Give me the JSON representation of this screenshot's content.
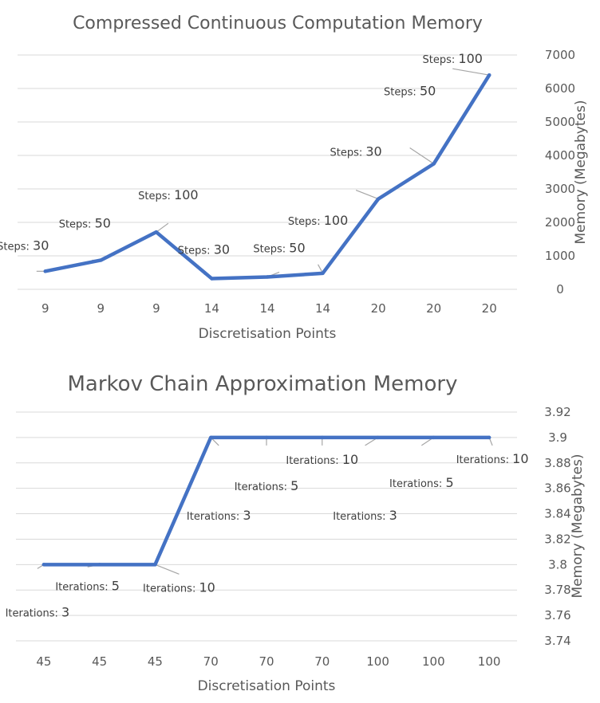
{
  "chart_data": [
    {
      "type": "line",
      "title": "Compressed Continuous Computation Memory",
      "xlabel": "Discretisation Points",
      "ylabel": "Memory (Megabytes)",
      "y_axis_side": "right",
      "ylim": [
        0,
        7000
      ],
      "y_ticks": [
        0,
        1000,
        2000,
        3000,
        4000,
        5000,
        6000,
        7000
      ],
      "grid": true,
      "legend": "none",
      "categories": [
        "9",
        "9",
        "9",
        "14",
        "14",
        "14",
        "20",
        "20",
        "20"
      ],
      "series": [
        {
          "color": "#4472c4",
          "values": [
            540,
            870,
            1710,
            320,
            370,
            480,
            2700,
            3750,
            6400
          ],
          "point_labels": [
            {
              "prefix": "Steps:",
              "value": "30"
            },
            {
              "prefix": "Steps:",
              "value": "50"
            },
            {
              "prefix": "Steps:",
              "value": "100"
            },
            {
              "prefix": "Steps:",
              "value": "30"
            },
            {
              "prefix": "Steps:",
              "value": "50"
            },
            {
              "prefix": "Steps:",
              "value": "100"
            },
            {
              "prefix": "Steps:",
              "value": "30"
            },
            {
              "prefix": "Steps:",
              "value": "50"
            },
            {
              "prefix": "Steps:",
              "value": "100"
            }
          ]
        }
      ]
    },
    {
      "type": "line",
      "title": "Markov Chain Approximation Memory",
      "xlabel": "Discretisation Points",
      "ylabel": "Memory (Megabytes)",
      "y_axis_side": "right",
      "ylim": [
        3.74,
        3.92
      ],
      "y_ticks": [
        "3.74",
        "3.76",
        "3.78",
        "3.8",
        "3.82",
        "3.84",
        "3.86",
        "3.88",
        "3.9",
        "3.92"
      ],
      "grid": true,
      "legend": "none",
      "categories": [
        "45",
        "45",
        "45",
        "70",
        "70",
        "70",
        "100",
        "100",
        "100"
      ],
      "series": [
        {
          "color": "#4472c4",
          "values": [
            3.8,
            3.8,
            3.8,
            3.9,
            3.9,
            3.9,
            3.9,
            3.9,
            3.9
          ],
          "point_labels": [
            {
              "prefix": "Iterations:",
              "value": "3"
            },
            {
              "prefix": "Iterations:",
              "value": "5"
            },
            {
              "prefix": "Iterations:",
              "value": "10"
            },
            {
              "prefix": "Iterations:",
              "value": "3"
            },
            {
              "prefix": "Iterations:",
              "value": "5"
            },
            {
              "prefix": "Iterations:",
              "value": "10"
            },
            {
              "prefix": "Iterations:",
              "value": "3"
            },
            {
              "prefix": "Iterations:",
              "value": "5"
            },
            {
              "prefix": "Iterations:",
              "value": "10"
            }
          ]
        }
      ]
    }
  ]
}
